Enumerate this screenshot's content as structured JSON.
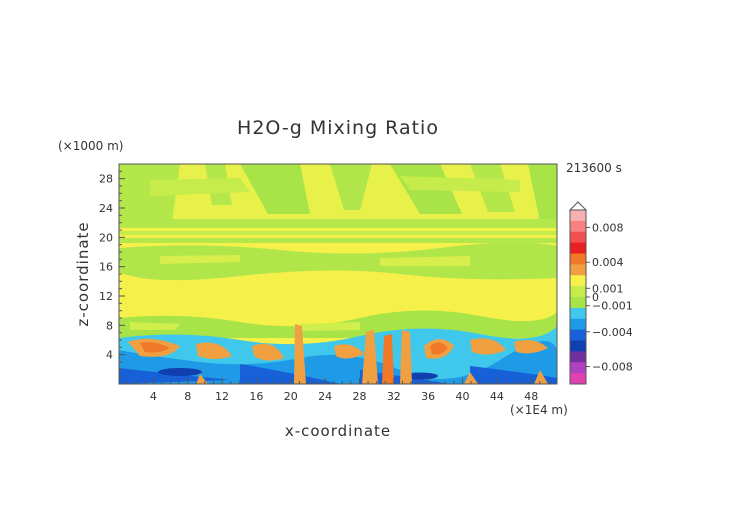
{
  "chart_data": {
    "type": "heatmap",
    "title": "H2O-g Mixing Ratio",
    "xlabel": "x-coordinate",
    "ylabel": "z-coordinate",
    "x_unit": "(×1E4 m)",
    "y_unit": "(×1000 m)",
    "time_label": "213600 s",
    "xlim": [
      0,
      51
    ],
    "ylim": [
      0,
      30
    ],
    "x_ticks": [
      "4",
      "8",
      "12",
      "16",
      "20",
      "24",
      "28",
      "32",
      "36",
      "40",
      "44",
      "48"
    ],
    "y_ticks": [
      "4",
      "8",
      "12",
      "16",
      "20",
      "24",
      "28"
    ],
    "colorbar": {
      "tick_labels": [
        "0.008",
        "0.004",
        "0.001",
        "0",
        "−0.001",
        "−0.004",
        "−0.008"
      ],
      "range": [
        -0.01,
        0.01
      ]
    },
    "layers": [
      {
        "z_range": [
          22,
          30
        ],
        "anomaly": 0.0,
        "note": "mixed yellow/green streaks"
      },
      {
        "z_range": [
          20,
          22
        ],
        "anomaly": -0.0005
      },
      {
        "z_range": [
          16,
          19
        ],
        "anomaly": -0.0003
      },
      {
        "z_range": [
          9,
          16
        ],
        "anomaly": 0.0
      },
      {
        "z_range": [
          6,
          9
        ],
        "anomaly": -0.0008
      },
      {
        "z_range": [
          0,
          6
        ],
        "anomaly": -0.004,
        "note": "blue/cyan with orange moist pockets"
      }
    ]
  }
}
